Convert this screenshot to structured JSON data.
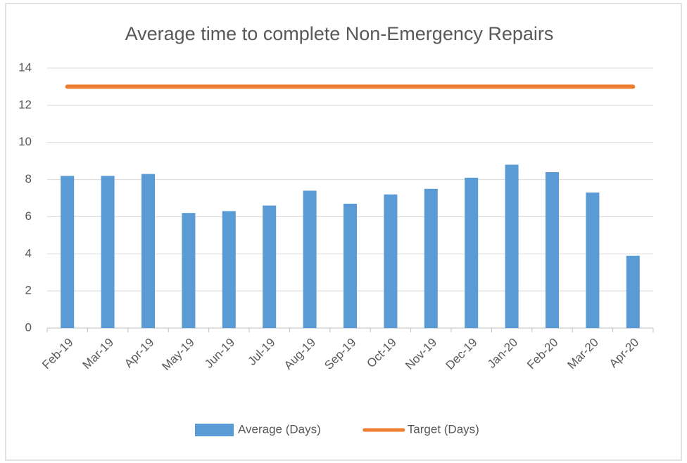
{
  "chart_data": {
    "type": "bar",
    "title": "Average time to complete Non-Emergency Repairs",
    "categories": [
      "Feb-19",
      "Mar-19",
      "Apr-19",
      "May-19",
      "Jun-19",
      "Jul-19",
      "Aug-19",
      "Sep-19",
      "Oct-19",
      "Nov-19",
      "Dec-19",
      "Jan-20",
      "Feb-20",
      "Mar-20",
      "Apr-20"
    ],
    "series": [
      {
        "name": "Average (Days)",
        "type": "bar",
        "color": "#5b9bd5",
        "values": [
          8.2,
          8.2,
          8.3,
          6.2,
          6.3,
          6.6,
          7.4,
          6.7,
          7.2,
          7.5,
          8.1,
          8.8,
          8.4,
          7.3,
          3.9
        ]
      },
      {
        "name": "Target (Days)",
        "type": "line",
        "color": "#ed7d31",
        "values": [
          13,
          13,
          13,
          13,
          13,
          13,
          13,
          13,
          13,
          13,
          13,
          13,
          13,
          13,
          13
        ]
      }
    ],
    "ylim": [
      0,
      14
    ],
    "yticks": [
      0,
      2,
      4,
      6,
      8,
      10,
      12,
      14
    ],
    "grid": true,
    "legend": "bottom"
  }
}
